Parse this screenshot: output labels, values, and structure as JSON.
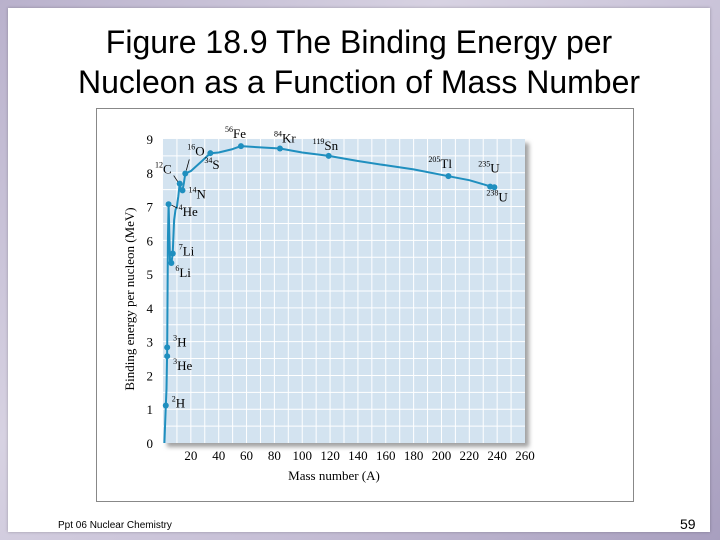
{
  "slide": {
    "title_line1": "Figure 18.9  The Binding Energy per",
    "title_line2": "Nucleon as a Function of Mass Number",
    "footer": "Ppt 06 Nuclear Chemistry",
    "page_number": "59"
  },
  "chart_data": {
    "type": "line",
    "title": "",
    "xlabel": "Mass number (A)",
    "ylabel": "Binding energy per nucleon (MeV)",
    "xlim": [
      0,
      260
    ],
    "ylim": [
      0,
      9
    ],
    "xticks": [
      20,
      40,
      60,
      80,
      100,
      120,
      140,
      160,
      180,
      200,
      220,
      240,
      260
    ],
    "yticks": [
      0,
      1,
      2,
      3,
      4,
      5,
      6,
      7,
      8,
      9
    ],
    "grid": true,
    "colors": {
      "plot_bg": "#d3e3f0",
      "grid": "#ffffff",
      "line": "#1f8fbf",
      "point": "#1f8fbf"
    },
    "curve": [
      [
        1,
        0
      ],
      [
        2,
        1.1
      ],
      [
        2.5,
        1.6
      ],
      [
        3,
        2.8
      ],
      [
        3.5,
        6.0
      ],
      [
        4,
        7.07
      ],
      [
        5,
        5.4
      ],
      [
        6,
        5.33
      ],
      [
        7,
        5.6
      ],
      [
        8,
        6.6
      ],
      [
        9,
        6.9
      ],
      [
        10,
        7.0
      ],
      [
        11,
        7.3
      ],
      [
        12,
        7.68
      ],
      [
        13,
        7.5
      ],
      [
        14,
        7.48
      ],
      [
        15,
        7.7
      ],
      [
        16,
        7.98
      ],
      [
        20,
        8.05
      ],
      [
        28,
        8.35
      ],
      [
        34,
        8.58
      ],
      [
        40,
        8.6
      ],
      [
        50,
        8.7
      ],
      [
        56,
        8.79
      ],
      [
        70,
        8.75
      ],
      [
        84,
        8.72
      ],
      [
        100,
        8.6
      ],
      [
        119,
        8.5
      ],
      [
        140,
        8.35
      ],
      [
        160,
        8.22
      ],
      [
        180,
        8.1
      ],
      [
        205,
        7.9
      ],
      [
        220,
        7.78
      ],
      [
        235,
        7.6
      ],
      [
        238,
        7.57
      ]
    ],
    "points": [
      {
        "x": 2,
        "y": 1.11,
        "label": "2H",
        "mass": "2",
        "element": "H"
      },
      {
        "x": 3,
        "y": 2.83,
        "label": "3H",
        "mass": "3",
        "element": "H"
      },
      {
        "x": 3,
        "y": 2.57,
        "label": "3He",
        "mass": "3",
        "element": "He"
      },
      {
        "x": 4,
        "y": 7.07,
        "label": "4He",
        "mass": "4",
        "element": "He"
      },
      {
        "x": 6,
        "y": 5.33,
        "label": "6Li",
        "mass": "6",
        "element": "Li"
      },
      {
        "x": 7,
        "y": 5.61,
        "label": "7Li",
        "mass": "7",
        "element": "Li"
      },
      {
        "x": 12,
        "y": 7.68,
        "label": "12C",
        "mass": "12",
        "element": "C"
      },
      {
        "x": 14,
        "y": 7.48,
        "label": "14N",
        "mass": "14",
        "element": "N"
      },
      {
        "x": 16,
        "y": 7.98,
        "label": "16O",
        "mass": "16",
        "element": "O"
      },
      {
        "x": 34,
        "y": 8.58,
        "label": "34S",
        "mass": "34",
        "element": "S"
      },
      {
        "x": 56,
        "y": 8.79,
        "label": "56Fe",
        "mass": "56",
        "element": "Fe"
      },
      {
        "x": 84,
        "y": 8.72,
        "label": "84Kr",
        "mass": "84",
        "element": "Kr"
      },
      {
        "x": 119,
        "y": 8.5,
        "label": "119Sn",
        "mass": "119",
        "element": "Sn"
      },
      {
        "x": 205,
        "y": 7.9,
        "label": "205Tl",
        "mass": "205",
        "element": "Tl"
      },
      {
        "x": 235,
        "y": 7.59,
        "label": "235U",
        "mass": "235",
        "element": "U"
      },
      {
        "x": 238,
        "y": 7.57,
        "label": "238U",
        "mass": "238",
        "element": "U"
      }
    ]
  }
}
